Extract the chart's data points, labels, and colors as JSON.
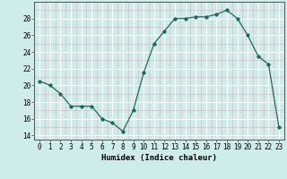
{
  "x": [
    0,
    1,
    2,
    3,
    4,
    5,
    6,
    7,
    8,
    9,
    10,
    11,
    12,
    13,
    14,
    15,
    16,
    17,
    18,
    19,
    20,
    21,
    22,
    23
  ],
  "y": [
    20.5,
    20.0,
    19.0,
    17.5,
    17.5,
    17.5,
    16.0,
    15.5,
    14.5,
    17.0,
    21.5,
    25.0,
    26.5,
    28.0,
    28.0,
    28.2,
    28.2,
    28.5,
    29.0,
    28.0,
    26.0,
    23.5,
    22.5,
    15.0
  ],
  "xlabel": "Humidex (Indice chaleur)",
  "xlim": [
    -0.5,
    23.5
  ],
  "ylim": [
    13.5,
    30.0
  ],
  "yticks": [
    14,
    16,
    18,
    20,
    22,
    24,
    26,
    28
  ],
  "xticks": [
    0,
    1,
    2,
    3,
    4,
    5,
    6,
    7,
    8,
    9,
    10,
    11,
    12,
    13,
    14,
    15,
    16,
    17,
    18,
    19,
    20,
    21,
    22,
    23
  ],
  "line_color": "#1a6b5a",
  "marker": "D",
  "marker_size": 1.8,
  "bg_color": "#ceecea",
  "grid_color_major": "#ffffff",
  "grid_color_minor": "#e8b8b8",
  "xlabel_fontsize": 6.5,
  "tick_fontsize": 5.5
}
